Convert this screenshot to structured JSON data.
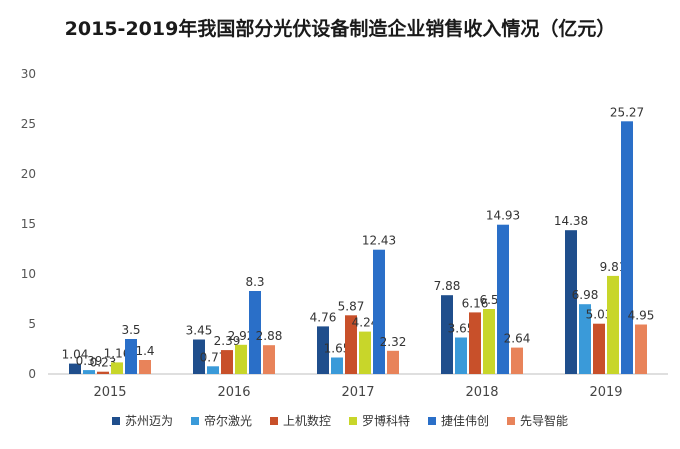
{
  "chart_data": {
    "type": "bar",
    "title": "2015-2019年我国部分光伏设备制造企业销售收入情况（亿元）",
    "categories": [
      "2015",
      "2016",
      "2017",
      "2018",
      "2019"
    ],
    "ylim": [
      0,
      30
    ],
    "yticks": [
      0,
      5,
      10,
      15,
      20,
      25,
      30
    ],
    "grid": false,
    "legend_position": "bottom",
    "series": [
      {
        "name": "苏州迈为",
        "color": "#1f4e8c",
        "values": [
          1.04,
          3.45,
          4.76,
          7.88,
          14.38
        ]
      },
      {
        "name": "帝尔激光",
        "color": "#3a9ad9",
        "values": [
          0.39,
          0.77,
          1.65,
          3.65,
          6.98
        ]
      },
      {
        "name": "上机数控",
        "color": "#c8502a",
        "values": [
          0.23,
          2.39,
          5.87,
          6.16,
          5.03
        ]
      },
      {
        "name": "罗博科特",
        "color": "#c8d62a",
        "values": [
          1.16,
          2.92,
          4.24,
          6.5,
          9.81
        ]
      },
      {
        "name": "捷佳伟创",
        "color": "#2a6fc8",
        "values": [
          3.5,
          8.3,
          12.43,
          14.93,
          25.27
        ]
      },
      {
        "name": "先导智能",
        "color": "#e8835a",
        "values": [
          1.4,
          2.88,
          2.32,
          2.64,
          4.95
        ]
      }
    ]
  }
}
